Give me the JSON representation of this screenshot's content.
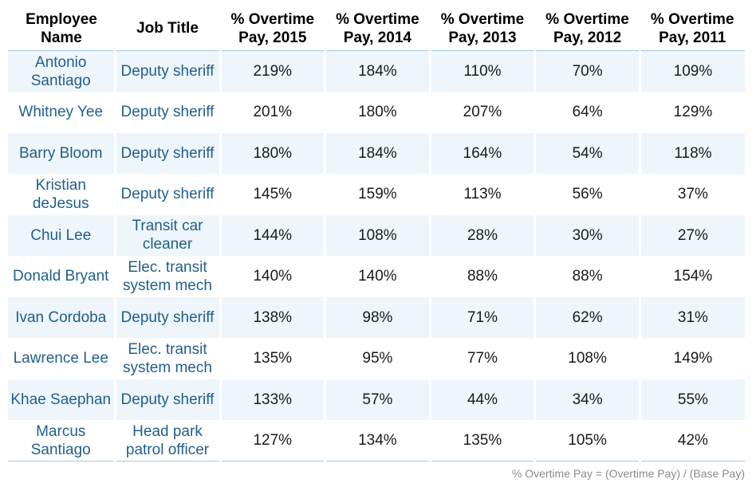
{
  "headers": [
    "Employee Name",
    "Job Title",
    "% Overtime Pay, 2015",
    "% Overtime Pay, 2014",
    "% Overtime Pay, 2013",
    "% Overtime Pay, 2012",
    "% Overtime Pay, 2011"
  ],
  "rows": [
    {
      "name": "Antonio Santiago",
      "title": "Deputy sheriff",
      "y2015": "219%",
      "y2014": "184%",
      "y2013": "110%",
      "y2012": "70%",
      "y2011": "109%"
    },
    {
      "name": "Whitney Yee",
      "title": "Deputy sheriff",
      "y2015": "201%",
      "y2014": "180%",
      "y2013": "207%",
      "y2012": "64%",
      "y2011": "129%"
    },
    {
      "name": "Barry Bloom",
      "title": "Deputy sheriff",
      "y2015": "180%",
      "y2014": "184%",
      "y2013": "164%",
      "y2012": "54%",
      "y2011": "118%"
    },
    {
      "name": "Kristian deJesus",
      "title": "Deputy sheriff",
      "y2015": "145%",
      "y2014": "159%",
      "y2013": "113%",
      "y2012": "56%",
      "y2011": "37%"
    },
    {
      "name": "Chui Lee",
      "title": "Transit car cleaner",
      "y2015": "144%",
      "y2014": "108%",
      "y2013": "28%",
      "y2012": "30%",
      "y2011": "27%"
    },
    {
      "name": "Donald Bryant",
      "title": "Elec. transit system mech",
      "y2015": "140%",
      "y2014": "140%",
      "y2013": "88%",
      "y2012": "88%",
      "y2011": "154%"
    },
    {
      "name": "Ivan Cordoba",
      "title": "Deputy sheriff",
      "y2015": "138%",
      "y2014": "98%",
      "y2013": "71%",
      "y2012": "62%",
      "y2011": "31%"
    },
    {
      "name": "Lawrence Lee",
      "title": "Elec. transit system mech",
      "y2015": "135%",
      "y2014": "95%",
      "y2013": "77%",
      "y2012": "108%",
      "y2011": "149%"
    },
    {
      "name": "Khae Saephan",
      "title": "Deputy sheriff",
      "y2015": "133%",
      "y2014": "57%",
      "y2013": "44%",
      "y2012": "34%",
      "y2011": "55%"
    },
    {
      "name": "Marcus Santiago",
      "title": "Head park patrol officer",
      "y2015": "127%",
      "y2014": "134%",
      "y2013": "135%",
      "y2012": "105%",
      "y2011": "42%"
    }
  ],
  "footnote": "% Overtime Pay = (Overtime Pay) / (Base Pay)",
  "colors": {
    "row_shade": "#eef5fb",
    "name_text": "#1f5f8b",
    "rule": "#9ec7e6",
    "footnote_text": "#8a8a8a"
  }
}
